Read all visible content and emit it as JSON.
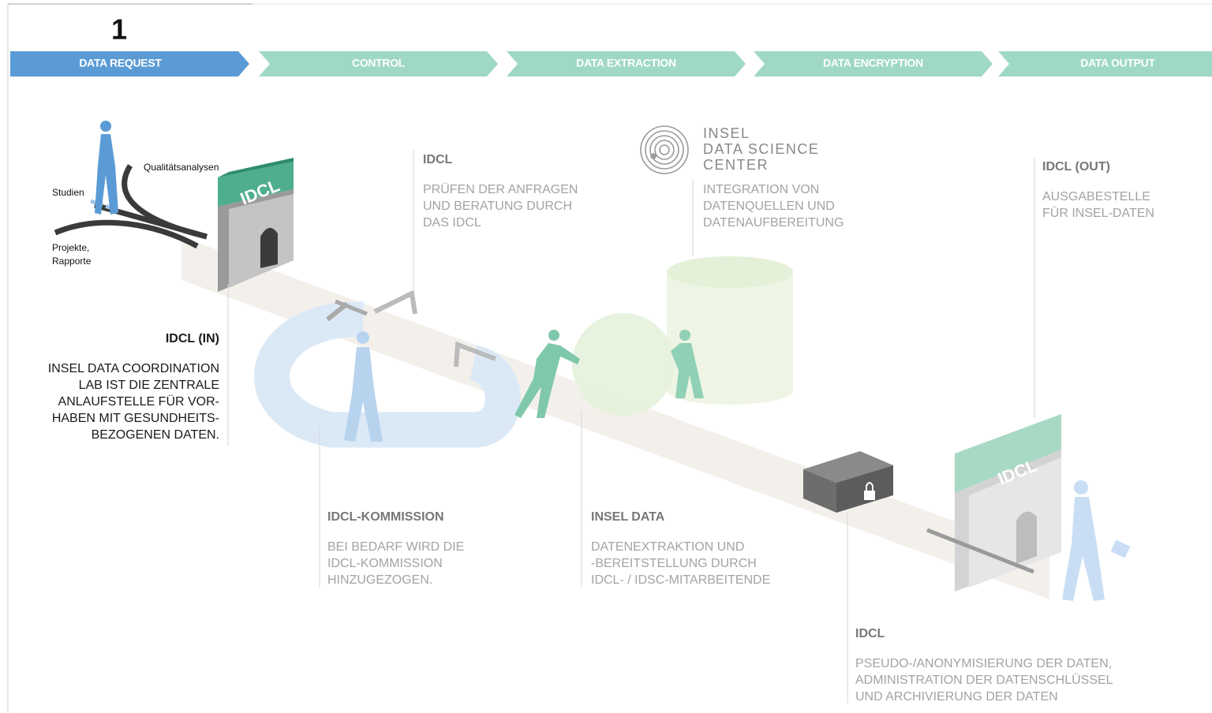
{
  "step_number": "1",
  "steps": [
    "DATA REQUEST",
    "CONTROL",
    "DATA EXTRACTION",
    "DATA ENCRYPTION",
    "DATA OUTPUT"
  ],
  "request_sources": [
    "Qualitätsanalysen",
    "Studien",
    "Projekte,",
    "Rapporte"
  ],
  "gate_labels": [
    "IDCL",
    "IDCL"
  ],
  "logo": {
    "lines": [
      "INSEL",
      "DATA SCIENCE",
      "CENTER"
    ]
  },
  "blocks": [
    {
      "heading": "IDCL (IN)",
      "lines": [
        "INSEL DATA COORDINATION",
        "LAB IST DIE ZENTRALE",
        "ANLAUFSTELLE FÜR VOR-",
        "HABEN MIT GESUNDHEITS-",
        "BEZOGENEN DATEN."
      ]
    },
    {
      "heading": "IDCL",
      "lines": [
        "PRÜFEN DER ANFRAGEN",
        "UND BERATUNG DURCH",
        "DAS IDCL"
      ]
    },
    {
      "lines": [
        "INTEGRATION VON",
        "DATENQUELLEN UND",
        "DATENAUFBEREITUNG"
      ]
    },
    {
      "heading": "IDCL (OUT)",
      "lines": [
        "AUSGABESTELLE",
        "FÜR INSEL-DATEN"
      ]
    },
    {
      "heading": "IDCL-KOMMISSION",
      "lines": [
        "BEI BEDARF WIRD DIE",
        "IDCL-KOMMISSION",
        "HINZUGEZOGEN."
      ]
    },
    {
      "heading": "INSEL DATA",
      "lines": [
        "DATENEXTRAKTION UND",
        "-BEREITSTELLUNG DURCH",
        "IDCL- / IDSC-MITARBEITENDE"
      ]
    },
    {
      "heading": "IDCL",
      "lines": [
        "PSEUDO-/ANONYMISIERUNG DER DATEN,",
        "ADMINISTRATION DER DATENSCHLÜSSEL",
        "UND ARCHIVIERUNG DER DATEN"
      ]
    }
  ]
}
